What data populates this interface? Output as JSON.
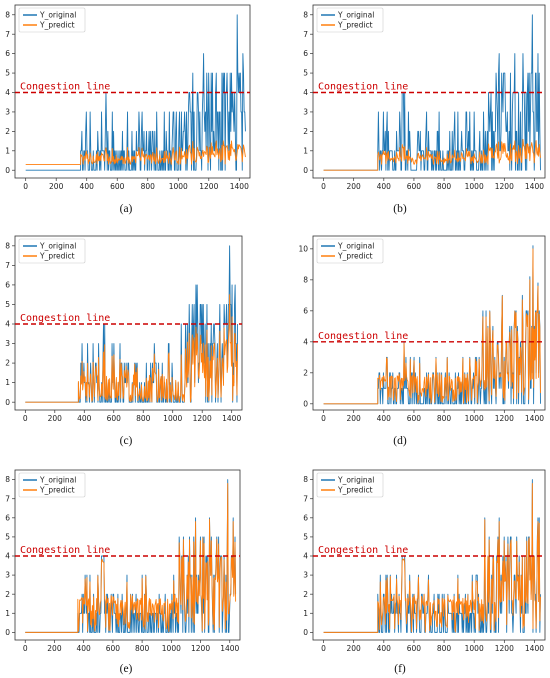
{
  "colors": {
    "original": "#1f77b4",
    "predict": "#ff7f0e",
    "congestion": "#cc0000"
  },
  "chart_data": [
    {
      "id": "a",
      "type": "line",
      "caption": "(a)",
      "series": [
        {
          "name": "Y_original"
        },
        {
          "name": "Y_predict"
        }
      ],
      "xlim": [
        0,
        1440
      ],
      "ylim": [
        0,
        8
      ],
      "xticks": [
        "0",
        "200",
        "400",
        "600",
        "800",
        "1000",
        "1200",
        "1400"
      ],
      "yticks": [
        "0",
        "1",
        "2",
        "3",
        "4",
        "5",
        "6",
        "7",
        "8"
      ],
      "annotation": "Congestion line",
      "congestion_y": 4,
      "predict_profile": "smooth",
      "baseline_predict": 0.3,
      "start_x": 360
    },
    {
      "id": "b",
      "type": "line",
      "caption": "(b)",
      "series": [
        {
          "name": "Y_original"
        },
        {
          "name": "Y_predict"
        }
      ],
      "xlim": [
        0,
        1440
      ],
      "ylim": [
        0,
        8
      ],
      "xticks": [
        "0",
        "200",
        "400",
        "600",
        "800",
        "1000",
        "1200",
        "1400"
      ],
      "yticks": [
        "0",
        "1",
        "2",
        "3",
        "4",
        "5",
        "6",
        "7",
        "8"
      ],
      "annotation": "Congestion line",
      "congestion_y": 4,
      "predict_profile": "smooth",
      "baseline_predict": 0,
      "start_x": 360
    },
    {
      "id": "c",
      "type": "line",
      "caption": "(c)",
      "series": [
        {
          "name": "Y_original"
        },
        {
          "name": "Y_predict"
        }
      ],
      "xlim": [
        0,
        1440
      ],
      "ylim": [
        0,
        8
      ],
      "xticks": [
        "0",
        "200",
        "400",
        "600",
        "800",
        "1000",
        "1200",
        "1400"
      ],
      "yticks": [
        "0",
        "1",
        "2",
        "3",
        "4",
        "5",
        "6",
        "7",
        "8"
      ],
      "annotation": "Congestion line",
      "congestion_y": 4,
      "predict_profile": "spiky",
      "baseline_predict": 0,
      "start_x": 360
    },
    {
      "id": "d",
      "type": "line",
      "caption": "(d)",
      "series": [
        {
          "name": "Y_original"
        },
        {
          "name": "Y_predict"
        }
      ],
      "xlim": [
        0,
        1440
      ],
      "ylim": [
        0,
        10.3
      ],
      "xticks": [
        "0",
        "200",
        "400",
        "600",
        "800",
        "1000",
        "1200",
        "1400"
      ],
      "yticks": [
        "0",
        "2",
        "4",
        "6",
        "8",
        "10"
      ],
      "annotation": "Congestion line",
      "congestion_y": 4,
      "predict_profile": "cover",
      "baseline_predict": 0,
      "start_x": 360
    },
    {
      "id": "e",
      "type": "line",
      "caption": "(e)",
      "series": [
        {
          "name": "Y_original"
        },
        {
          "name": "Y_predict"
        }
      ],
      "xlim": [
        0,
        1440
      ],
      "ylim": [
        0,
        8
      ],
      "xticks": [
        "0",
        "200",
        "400",
        "600",
        "800",
        "1000",
        "1200",
        "1400"
      ],
      "yticks": [
        "0",
        "1",
        "2",
        "3",
        "4",
        "5",
        "6",
        "7",
        "8"
      ],
      "annotation": "Congestion line",
      "congestion_y": 4,
      "predict_profile": "cover",
      "baseline_predict": 0,
      "start_x": 360
    },
    {
      "id": "f",
      "type": "line",
      "caption": "(f)",
      "series": [
        {
          "name": "Y_original"
        },
        {
          "name": "Y_predict"
        }
      ],
      "xlim": [
        0,
        1440
      ],
      "ylim": [
        0,
        8
      ],
      "xticks": [
        "0",
        "200",
        "400",
        "600",
        "800",
        "1000",
        "1200",
        "1400"
      ],
      "yticks": [
        "0",
        "1",
        "2",
        "3",
        "4",
        "5",
        "6",
        "7",
        "8"
      ],
      "annotation": "Congestion line",
      "congestion_y": 4,
      "predict_profile": "cover",
      "baseline_predict": 0,
      "start_x": 360
    }
  ]
}
